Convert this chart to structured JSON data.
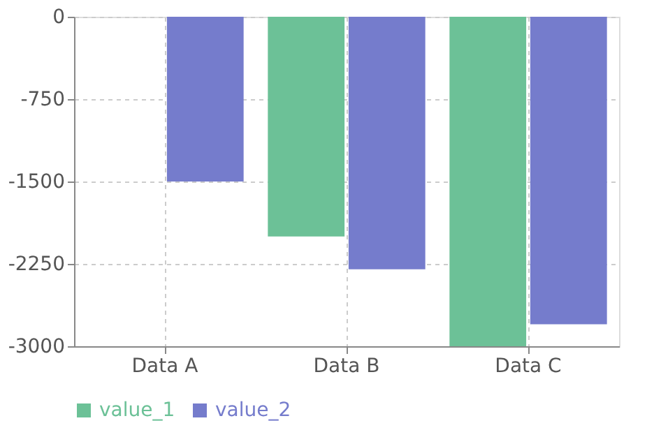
{
  "chart_data": {
    "type": "bar",
    "categories": [
      "Data A",
      "Data B",
      "Data C"
    ],
    "series": [
      {
        "name": "value_1",
        "color": "#6cc197",
        "values": [
          0,
          -2000,
          -3000
        ]
      },
      {
        "name": "value_2",
        "color": "#757ccc",
        "values": [
          -1500,
          -2300,
          -2800
        ]
      }
    ],
    "ylim": [
      -3000,
      0
    ],
    "yticks": [
      0,
      -750,
      -1500,
      -2250,
      -3000
    ],
    "grid": true,
    "legend": "bottom"
  }
}
